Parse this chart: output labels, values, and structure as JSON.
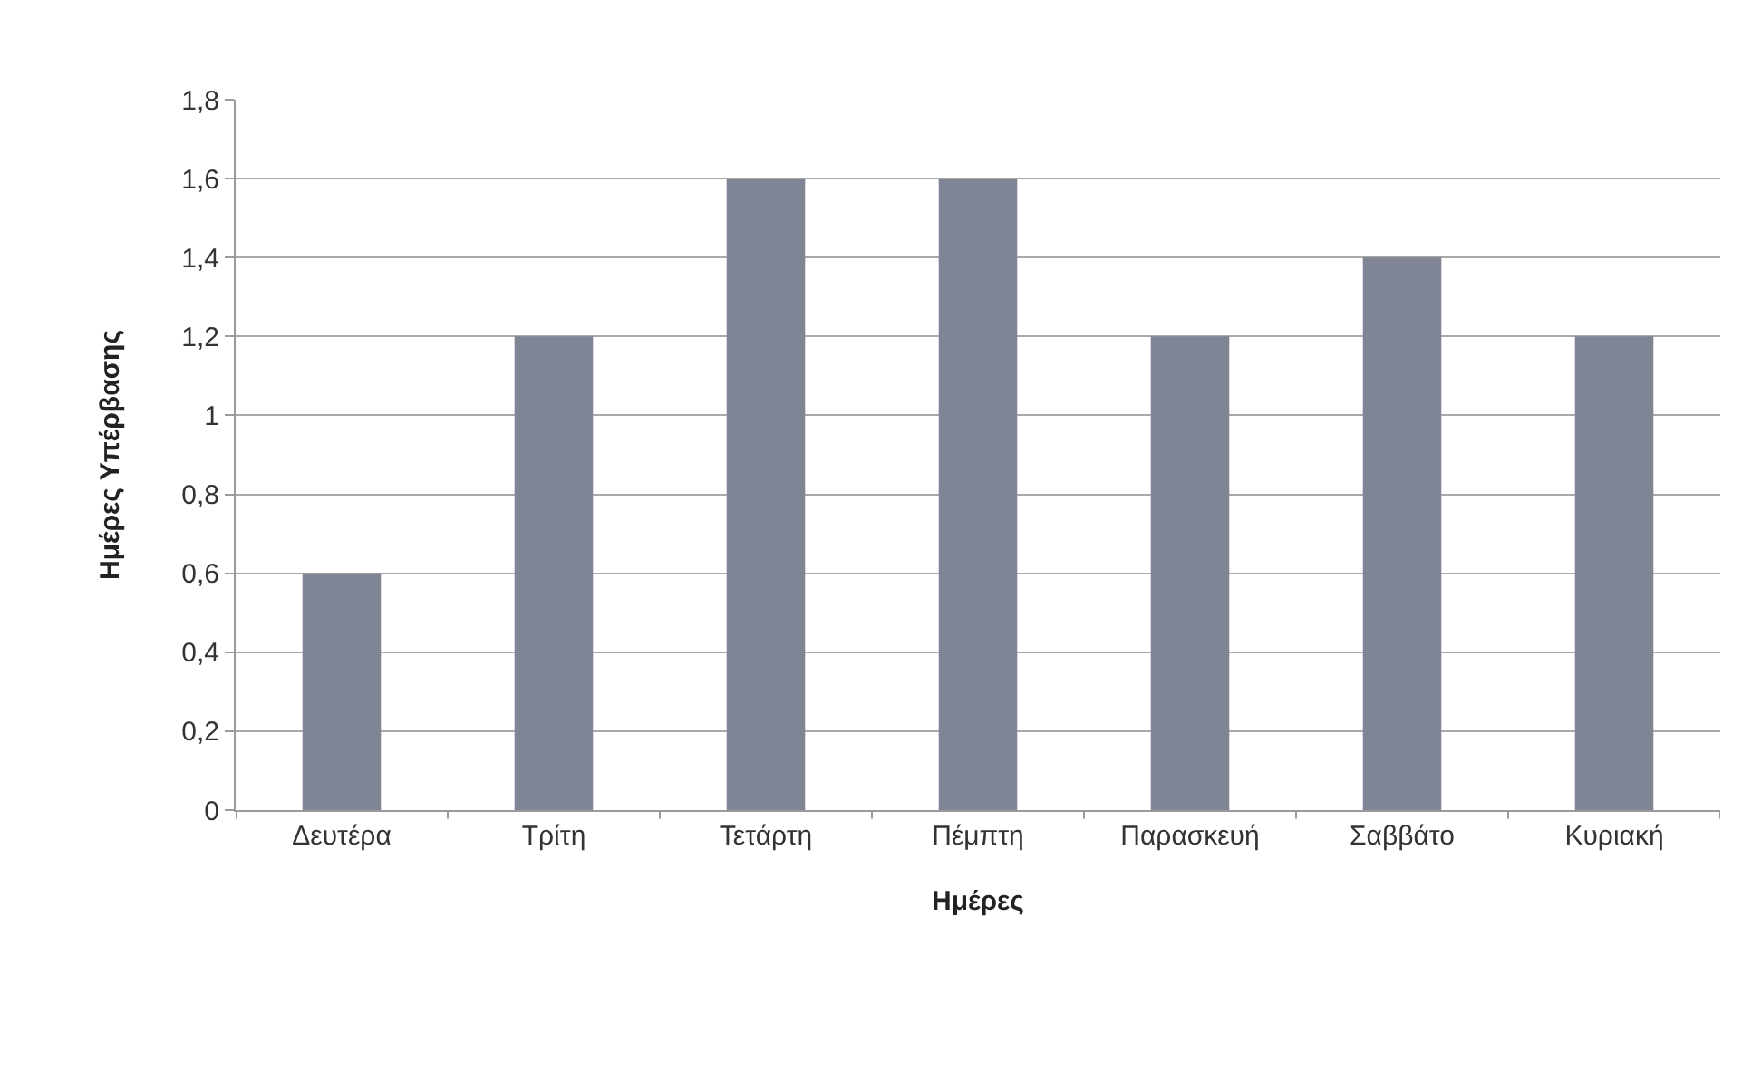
{
  "chart_data": {
    "type": "bar",
    "xlabel": "Ημέρες",
    "ylabel": "Ημέρες Υπέρβασης",
    "categories": [
      "Δευτέρα",
      "Τρίτη",
      "Τετάρτη",
      "Πέμπτη",
      "Παρασκευή",
      "Σαββάτο",
      "Κυριακή"
    ],
    "values": [
      0.6,
      1.2,
      1.6,
      1.6,
      1.2,
      1.4,
      1.2
    ],
    "color": "#7f8594",
    "ylim": [
      0,
      1.8
    ],
    "yticks": [
      0,
      {
        "value": 0.2,
        "label": "0,2"
      },
      {
        "value": 0.4,
        "label": "0,4"
      },
      {
        "value": 0.6,
        "label": "0,6"
      },
      {
        "value": 0.8,
        "label": "0,8"
      },
      1,
      {
        "value": 1.2,
        "label": "1,2"
      },
      {
        "value": 1.4,
        "label": "1,4"
      },
      {
        "value": 1.6,
        "label": "1,6"
      },
      {
        "value": 1.8,
        "label": "1,8"
      }
    ],
    "grid": "y"
  }
}
